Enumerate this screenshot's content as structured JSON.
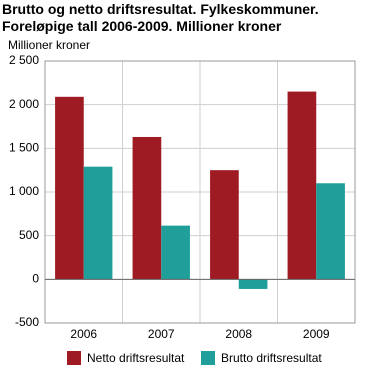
{
  "chart_data": {
    "type": "bar",
    "title": "Brutto og netto driftsresultat. Fylkeskommuner. Foreløpige tall 2006-2009. Millioner kroner",
    "ylabel": "Millioner kroner",
    "categories": [
      "2006",
      "2007",
      "2008",
      "2009"
    ],
    "series": [
      {
        "name": "Netto driftsresultat",
        "color": "#9e1b24",
        "values": [
          2090,
          1630,
          1250,
          2150
        ]
      },
      {
        "name": "Brutto driftsresultat",
        "color": "#1f9e9a",
        "values": [
          1290,
          615,
          -110,
          1100
        ]
      }
    ],
    "ylim": [
      -500,
      2500
    ],
    "yticks": [
      -500,
      0,
      500,
      {
        "value": 1000,
        "label": "1 000"
      },
      {
        "value": 1500,
        "label": "1 500"
      },
      {
        "value": 2000,
        "label": "2 000"
      },
      {
        "value": 2500,
        "label": "2 500"
      }
    ],
    "grid": true,
    "legend": "bottom"
  }
}
